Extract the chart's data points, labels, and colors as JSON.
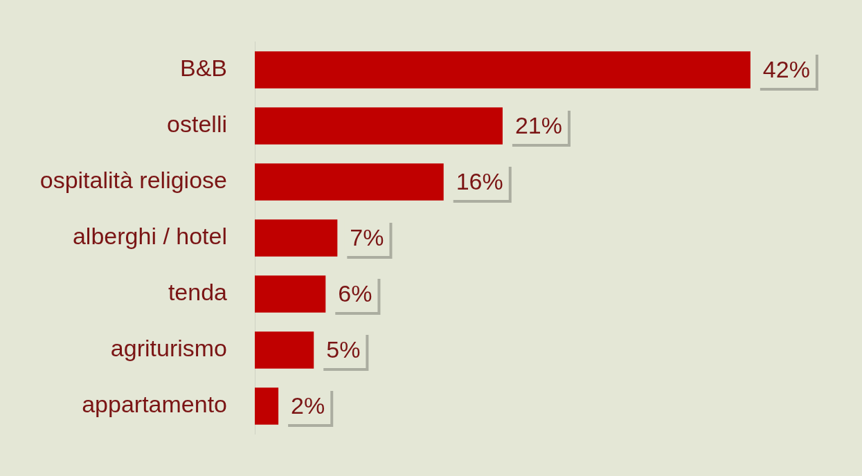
{
  "chart_data": {
    "type": "bar",
    "orientation": "horizontal",
    "categories": [
      "B&B",
      "ostelli",
      "ospitalità religiose",
      "alberghi / hotel",
      "tenda",
      "agriturismo",
      "appartamento"
    ],
    "values": [
      42,
      21,
      16,
      7,
      6,
      5,
      2
    ],
    "value_labels": [
      "42%",
      "21%",
      "16%",
      "7%",
      "6%",
      "5%",
      "2%"
    ],
    "color": "#c00000",
    "legend": false,
    "grid": false
  }
}
